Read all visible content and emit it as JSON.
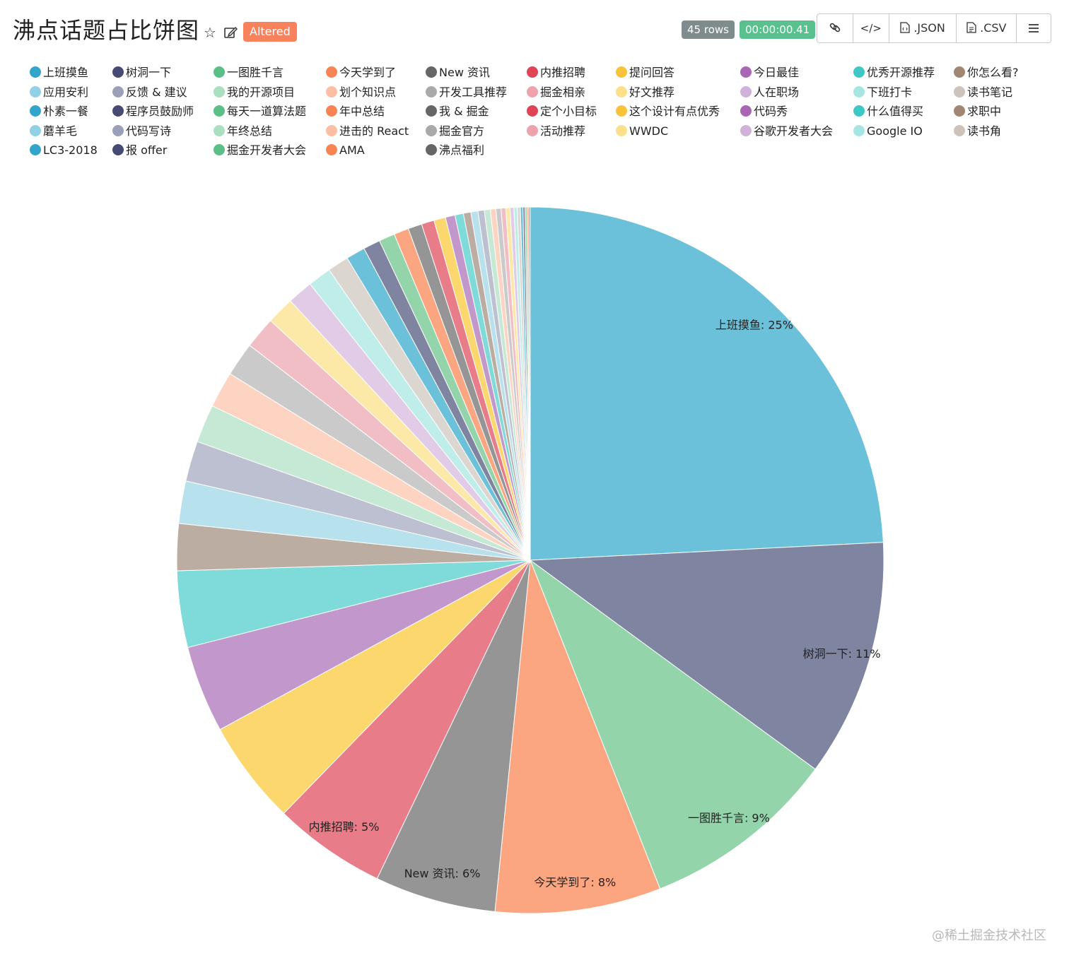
{
  "header": {
    "title": "沸点话题占比饼图",
    "altered_label": "Altered",
    "rows_badge": "45 rows",
    "time_badge": "00:00:00.41",
    "buttons": {
      "json_label": ".JSON",
      "csv_label": ".CSV"
    },
    "icons": [
      "star-icon",
      "edit-icon",
      "link-icon",
      "code-icon",
      "json-file-icon",
      "csv-file-icon",
      "hamburger-menu-icon"
    ]
  },
  "watermark": "@稀土掘金技术社区",
  "chart_data": {
    "type": "pie",
    "title": "沸点话题占比饼图",
    "legend_position": "top",
    "start_angle_deg": 0,
    "direction": "clockwise",
    "slices": [
      {
        "label": "上班摸鱼",
        "value": 24.9,
        "color": "#6bc1d9",
        "dot": "#33a5cb",
        "show_label": true,
        "label_text": "上班摸鱼: 25%"
      },
      {
        "label": "树洞一下",
        "value": 11.2,
        "color": "#7f84a0",
        "dot": "#474a73",
        "show_label": true,
        "label_text": "树洞一下: 11%"
      },
      {
        "label": "一图胜千言",
        "value": 9.2,
        "color": "#93d4ab",
        "dot": "#5bbf86",
        "show_label": true,
        "label_text": "一图胜千言: 9%"
      },
      {
        "label": "今天学到了",
        "value": 7.8,
        "color": "#fca681",
        "dot": "#f88453",
        "show_label": true,
        "label_text": "今天学到了: 8%"
      },
      {
        "label": "New 资讯",
        "value": 5.7,
        "color": "#959595",
        "dot": "#666666",
        "show_label": true,
        "label_text": "New 资讯: 6%"
      },
      {
        "label": "内推招聘",
        "value": 5.3,
        "color": "#e87c88",
        "dot": "#de4455",
        "show_label": true,
        "label_text": "内推招聘: 5%"
      },
      {
        "label": "提问回答",
        "value": 4.9,
        "color": "#fcd76d",
        "dot": "#f8c33b",
        "show_label": false
      },
      {
        "label": "今日最佳",
        "value": 4.1,
        "color": "#c297cc",
        "dot": "#a866b5",
        "show_label": false
      },
      {
        "label": "优秀开源推荐",
        "value": 3.6,
        "color": "#7edbd9",
        "dot": "#3ec8c5",
        "show_label": false
      },
      {
        "label": "你怎么看?",
        "value": 2.2,
        "color": "#bbada1",
        "dot": "#a08773",
        "show_label": false
      },
      {
        "label": "应用安利",
        "value": 2.0,
        "color": "#b7e1ed",
        "dot": "#92d1e5",
        "show_label": false
      },
      {
        "label": "反馈 & 建议",
        "value": 1.9,
        "color": "#bdc0d0",
        "dot": "#9c9fb8",
        "show_label": false
      },
      {
        "label": "我的开源项目",
        "value": 1.8,
        "color": "#c6e9d5",
        "dot": "#aadfc1",
        "show_label": false
      },
      {
        "label": "划个知识点",
        "value": 1.7,
        "color": "#fdd3c2",
        "dot": "#fcbfa4",
        "show_label": false
      },
      {
        "label": "开发工具推荐",
        "value": 1.6,
        "color": "#cacaca",
        "dot": "#a9a9a9",
        "show_label": false
      },
      {
        "label": "掘金相亲",
        "value": 1.5,
        "color": "#f2bec5",
        "dot": "#eca3ac",
        "show_label": false
      },
      {
        "label": "好文推荐",
        "value": 1.3,
        "color": "#fde9a7",
        "dot": "#fbdf8b",
        "show_label": false
      },
      {
        "label": "人在职场",
        "value": 1.2,
        "color": "#e1cbe6",
        "dot": "#d0b1d8",
        "show_label": false
      },
      {
        "label": "下班打卡",
        "value": 1.1,
        "color": "#bfede9",
        "dot": "#a5e6e2",
        "show_label": false
      },
      {
        "label": "读书笔记",
        "value": 1.0,
        "color": "#dcd6d0",
        "dot": "#cdc3bb",
        "show_label": false
      },
      {
        "label": "朴素一餐",
        "value": 0.9,
        "color": "#6bc1d9",
        "dot": "#33a5cb",
        "show_label": false
      },
      {
        "label": "程序员鼓励师",
        "value": 0.8,
        "color": "#7f84a0",
        "dot": "#474a73",
        "show_label": false
      },
      {
        "label": "每天一道算法题",
        "value": 0.75,
        "color": "#93d4ab",
        "dot": "#5bbf86",
        "show_label": false
      },
      {
        "label": "年中总结",
        "value": 0.7,
        "color": "#fca681",
        "dot": "#f88453",
        "show_label": false
      },
      {
        "label": "我 & 掘金",
        "value": 0.65,
        "color": "#959595",
        "dot": "#666666",
        "show_label": false
      },
      {
        "label": "定个小目标",
        "value": 0.6,
        "color": "#e87c88",
        "dot": "#de4455",
        "show_label": false
      },
      {
        "label": "这个设计有点优秀",
        "value": 0.55,
        "color": "#fcd76d",
        "dot": "#f8c33b",
        "show_label": false
      },
      {
        "label": "代码秀",
        "value": 0.45,
        "color": "#c297cc",
        "dot": "#a866b5",
        "show_label": false
      },
      {
        "label": "什么值得买",
        "value": 0.4,
        "color": "#7edbd9",
        "dot": "#3ec8c5",
        "show_label": false
      },
      {
        "label": "求职中",
        "value": 0.35,
        "color": "#bbada1",
        "dot": "#a08773",
        "show_label": false
      },
      {
        "label": "蘑羊毛",
        "value": 0.33,
        "color": "#b7e1ed",
        "dot": "#92d1e5",
        "show_label": false
      },
      {
        "label": "代码写诗",
        "value": 0.3,
        "color": "#bdc0d0",
        "dot": "#9c9fb8",
        "show_label": false
      },
      {
        "label": "年终总结",
        "value": 0.28,
        "color": "#c6e9d5",
        "dot": "#aadfc1",
        "show_label": false
      },
      {
        "label": "进击的 React",
        "value": 0.26,
        "color": "#fdd3c2",
        "dot": "#fcbfa4",
        "show_label": false
      },
      {
        "label": "掘金官方",
        "value": 0.24,
        "color": "#cacaca",
        "dot": "#a9a9a9",
        "show_label": false
      },
      {
        "label": "活动推荐",
        "value": 0.22,
        "color": "#f2bec5",
        "dot": "#eca3ac",
        "show_label": false
      },
      {
        "label": "WWDC",
        "value": 0.2,
        "color": "#fde9a7",
        "dot": "#fbdf8b",
        "show_label": false
      },
      {
        "label": "谷歌开发者大会",
        "value": 0.18,
        "color": "#e1cbe6",
        "dot": "#d0b1d8",
        "show_label": false
      },
      {
        "label": "Google IO",
        "value": 0.16,
        "color": "#bfede9",
        "dot": "#a5e6e2",
        "show_label": false
      },
      {
        "label": "读书角",
        "value": 0.14,
        "color": "#dcd6d0",
        "dot": "#cdc3bb",
        "show_label": false
      },
      {
        "label": "LC3-2018",
        "value": 0.12,
        "color": "#6bc1d9",
        "dot": "#33a5cb",
        "show_label": false
      },
      {
        "label": "报 offer",
        "value": 0.1,
        "color": "#7f84a0",
        "dot": "#474a73",
        "show_label": false
      },
      {
        "label": "掘金开发者大会",
        "value": 0.09,
        "color": "#93d4ab",
        "dot": "#5bbf86",
        "show_label": false
      },
      {
        "label": "AMA",
        "value": 0.08,
        "color": "#fca681",
        "dot": "#f88453",
        "show_label": false
      },
      {
        "label": "沸点福利",
        "value": 0.07,
        "color": "#959595",
        "dot": "#666666",
        "show_label": false
      }
    ]
  }
}
